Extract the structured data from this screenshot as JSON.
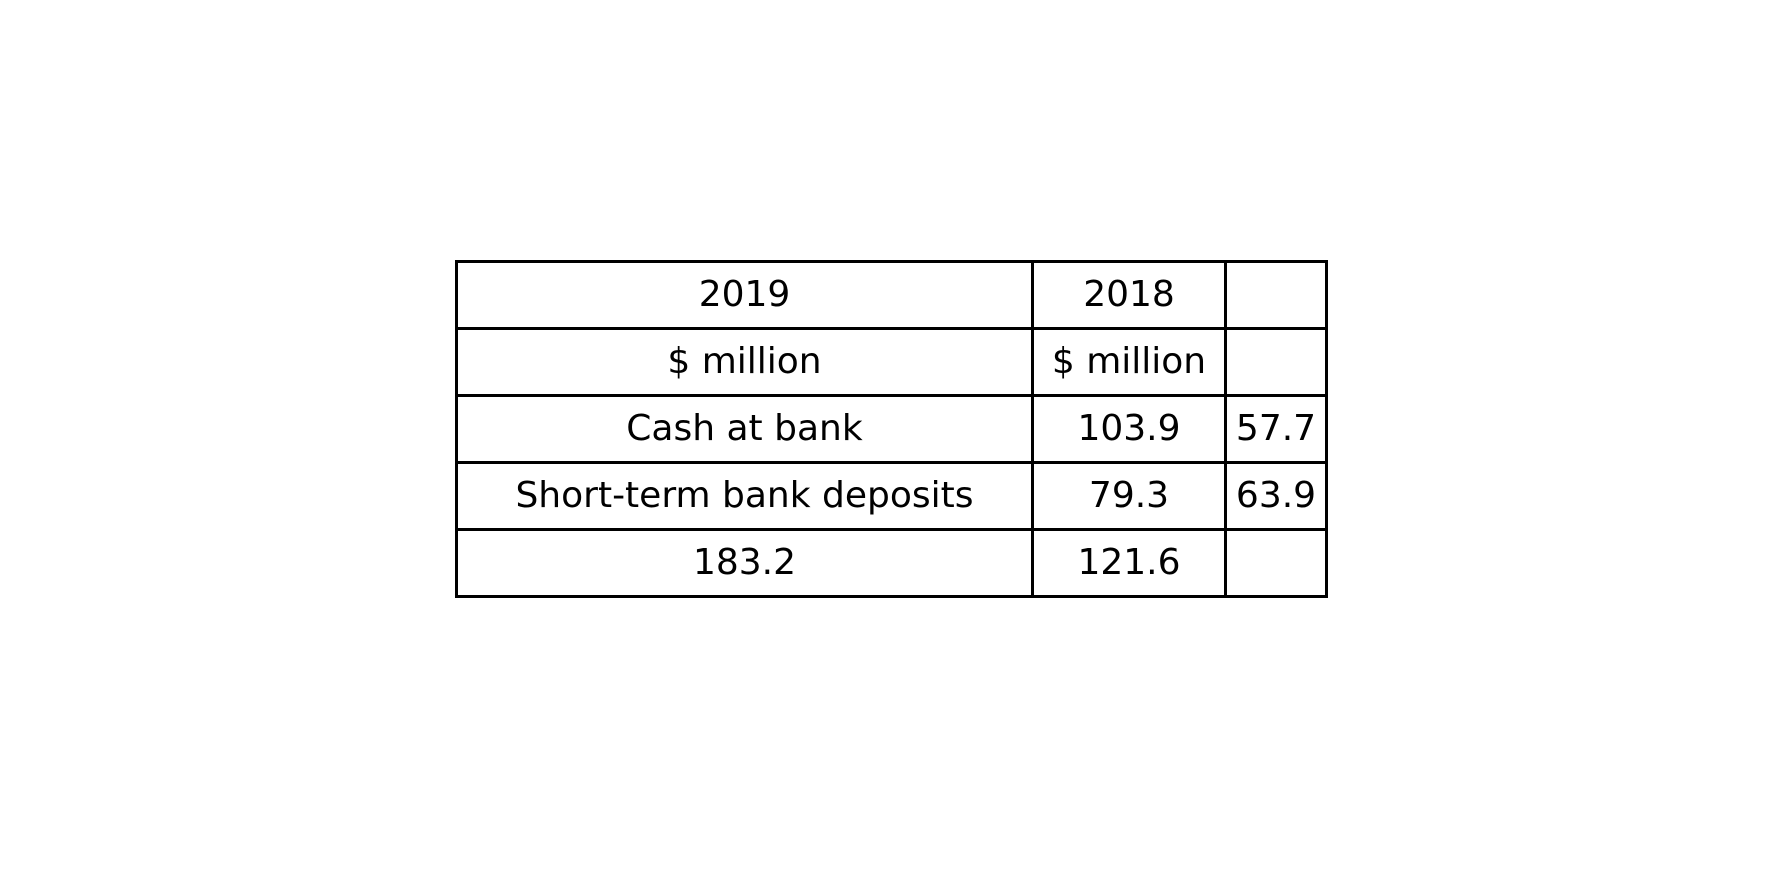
{
  "table": {
    "rows": [
      [
        "2019",
        "2018",
        ""
      ],
      [
        "$ million",
        "$ million",
        ""
      ],
      [
        "Cash at bank",
        "103.9",
        "57.7"
      ],
      [
        "Short-term bank deposits",
        "79.3",
        "63.9"
      ],
      [
        "183.2",
        "121.6",
        ""
      ]
    ]
  }
}
